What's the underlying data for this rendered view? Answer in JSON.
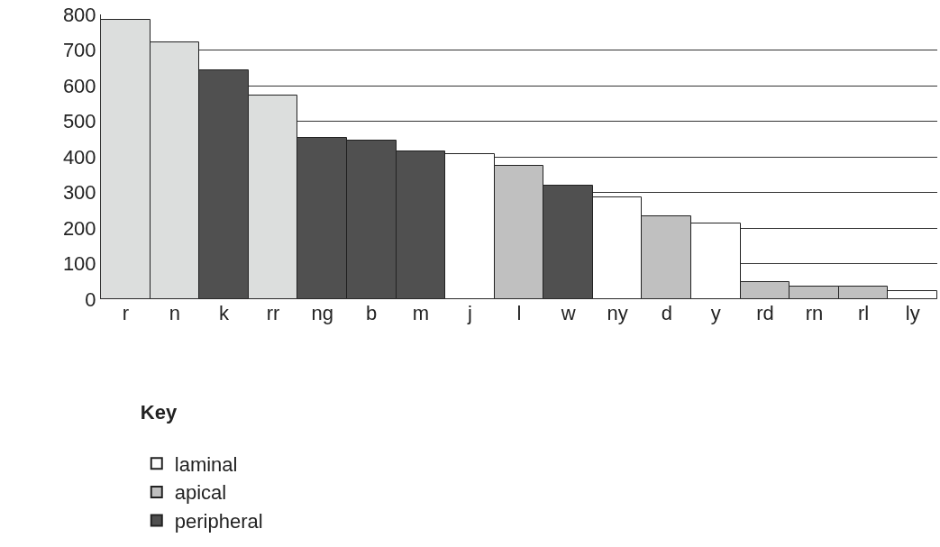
{
  "chart_data": {
    "type": "bar",
    "categories": [
      "r",
      "n",
      "k",
      "rr",
      "ng",
      "b",
      "m",
      "j",
      "l",
      "w",
      "ny",
      "d",
      "y",
      "rd",
      "rn",
      "rl",
      "ly"
    ],
    "series": [
      {
        "name": "laminal",
        "color": "#ffffff",
        "values": [
          null,
          null,
          null,
          null,
          null,
          null,
          null,
          408,
          null,
          null,
          286,
          null,
          213,
          null,
          null,
          null,
          23
        ]
      },
      {
        "name": "apical",
        "color": "#c0c0c0",
        "values": [
          null,
          null,
          null,
          null,
          null,
          null,
          null,
          null,
          375,
          null,
          null,
          233,
          null,
          48,
          35,
          35,
          null
        ]
      },
      {
        "name": "peripheral",
        "color": "#505050",
        "values": [
          null,
          null,
          643,
          null,
          453,
          446,
          415,
          null,
          null,
          319,
          null,
          null,
          null,
          null,
          null,
          null,
          null
        ]
      },
      {
        "color": "#dcdedd",
        "values": [
          785,
          721,
          null,
          572,
          null,
          null,
          null,
          null,
          null,
          null,
          null,
          null,
          null,
          null,
          null,
          null,
          null
        ]
      }
    ],
    "legend_title": "Key",
    "ylim": [
      0,
      800
    ],
    "yticks": [
      0,
      100,
      200,
      300,
      400,
      500,
      600,
      700,
      800
    ],
    "grid": "y",
    "legend": "bottom left"
  }
}
